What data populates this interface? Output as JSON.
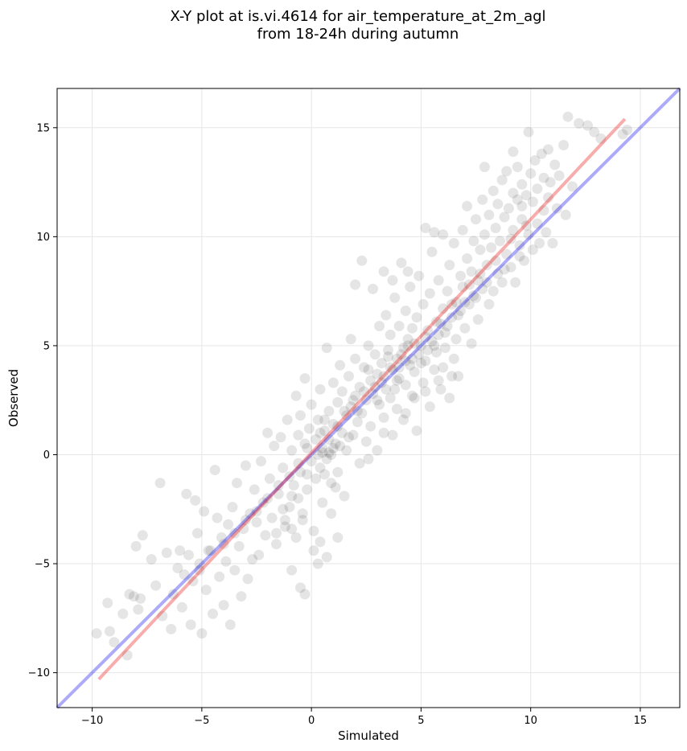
{
  "chart_data": {
    "type": "scatter",
    "title_lines": [
      "X-Y plot at is.vi.4614 for air_temperature_at_2m_agl",
      "from 18-24h during autumn"
    ],
    "xlabel": "Simulated",
    "ylabel": "Observed",
    "xlim": [
      -11.6,
      16.8
    ],
    "ylim": [
      -11.6,
      16.8
    ],
    "xticks": [
      -10,
      -5,
      0,
      5,
      10,
      15
    ],
    "yticks": [
      -10,
      -5,
      0,
      5,
      10,
      15
    ],
    "xtick_labels": [
      "−10",
      "−5",
      "0",
      "5",
      "10",
      "15"
    ],
    "ytick_labels": [
      "−10",
      "−5",
      "0",
      "5",
      "10",
      "15"
    ],
    "grid": true,
    "colors": {
      "points": "#000000",
      "one_to_one_line": "#0000ee",
      "fit_line": "#ee1111",
      "grid": "#e6e6e6"
    },
    "one_to_one_line": {
      "x": [
        -11.6,
        16.8
      ],
      "y": [
        -11.6,
        16.8
      ]
    },
    "fit_line": {
      "x": [
        -9.7,
        14.3
      ],
      "y": [
        -10.3,
        15.4
      ]
    },
    "points": [
      [
        -9.8,
        -8.2
      ],
      [
        -9.3,
        -6.8
      ],
      [
        -9.2,
        -8.1
      ],
      [
        -9.0,
        -8.6
      ],
      [
        -8.6,
        -7.3
      ],
      [
        -8.4,
        -9.2
      ],
      [
        -8.3,
        -6.4
      ],
      [
        -8.1,
        -6.5
      ],
      [
        -8.0,
        -4.2
      ],
      [
        -7.9,
        -7.1
      ],
      [
        -7.8,
        -6.6
      ],
      [
        -7.7,
        -3.7
      ],
      [
        -7.3,
        -4.8
      ],
      [
        -7.1,
        -6.0
      ],
      [
        -6.9,
        -1.3
      ],
      [
        -6.8,
        -7.4
      ],
      [
        -6.6,
        -4.5
      ],
      [
        -6.4,
        -8.0
      ],
      [
        -6.3,
        -6.4
      ],
      [
        -6.1,
        -5.2
      ],
      [
        -6.0,
        -4.4
      ],
      [
        -5.9,
        -7.0
      ],
      [
        -5.7,
        -1.8
      ],
      [
        -5.6,
        -4.6
      ],
      [
        -5.5,
        -7.8
      ],
      [
        -5.4,
        -5.8
      ],
      [
        -5.3,
        -2.1
      ],
      [
        -5.2,
        -3.6
      ],
      [
        -5.1,
        -5.0
      ],
      [
        -5.0,
        -8.2
      ],
      [
        -4.9,
        -2.6
      ],
      [
        -4.8,
        -6.2
      ],
      [
        -4.7,
        -4.4
      ],
      [
        -4.5,
        -7.3
      ],
      [
        -4.4,
        -0.7
      ],
      [
        -4.3,
        -2.9
      ],
      [
        -4.2,
        -5.6
      ],
      [
        -4.1,
        -3.8
      ],
      [
        -4.0,
        -6.9
      ],
      [
        -3.9,
        -4.9
      ],
      [
        -3.8,
        -3.2
      ],
      [
        -3.7,
        -7.8
      ],
      [
        -3.6,
        -2.4
      ],
      [
        -3.5,
        -5.3
      ],
      [
        -3.4,
        -1.3
      ],
      [
        -3.3,
        -4.2
      ],
      [
        -3.2,
        -6.5
      ],
      [
        -3.1,
        -3.4
      ],
      [
        -3.0,
        -0.5
      ],
      [
        -2.9,
        -5.7
      ],
      [
        -2.8,
        -2.7
      ],
      [
        -2.7,
        -4.8
      ],
      [
        -2.6,
        -1.6
      ],
      [
        -2.5,
        -3.1
      ],
      [
        -2.4,
        -4.6
      ],
      [
        -2.3,
        -0.3
      ],
      [
        -2.2,
        -2.2
      ],
      [
        -2.1,
        -3.7
      ],
      [
        -2.0,
        1.0
      ],
      [
        -1.9,
        -1.1
      ],
      [
        -1.8,
        -2.9
      ],
      [
        -1.7,
        0.4
      ],
      [
        -1.6,
        -4.1
      ],
      [
        -1.5,
        -1.8
      ],
      [
        -1.4,
        0.8
      ],
      [
        -1.3,
        -0.6
      ],
      [
        -1.2,
        -3.3
      ],
      [
        -1.1,
        1.6
      ],
      [
        -1.0,
        -2.4
      ],
      [
        -0.9,
        0.2
      ],
      [
        -0.8,
        -1.4
      ],
      [
        -0.7,
        2.7
      ],
      [
        -0.7,
        -3.8
      ],
      [
        -0.6,
        0.9
      ],
      [
        -0.5,
        -0.8
      ],
      [
        -0.5,
        1.8
      ],
      [
        -0.4,
        -2.7
      ],
      [
        -0.3,
        0.5
      ],
      [
        -0.3,
        3.5
      ],
      [
        -0.2,
        -1.6
      ],
      [
        -0.1,
        1.2
      ],
      [
        0.0,
        -0.3
      ],
      [
        0.0,
        2.3
      ],
      [
        0.1,
        -3.5
      ],
      [
        0.2,
        0.7
      ],
      [
        0.2,
        -1.1
      ],
      [
        0.3,
        1.6
      ],
      [
        0.4,
        -0.6
      ],
      [
        0.4,
        3.0
      ],
      [
        0.5,
        0.3
      ],
      [
        0.5,
        -2.2
      ],
      [
        0.6,
        1.1
      ],
      [
        0.7,
        -0.2
      ],
      [
        0.7,
        4.9
      ],
      [
        0.8,
        2.0
      ],
      [
        0.8,
        0.1
      ],
      [
        0.9,
        -1.3
      ],
      [
        1.0,
        1.4
      ],
      [
        1.0,
        3.3
      ],
      [
        1.1,
        0.5
      ],
      [
        1.2,
        2.4
      ],
      [
        1.2,
        -0.8
      ],
      [
        1.3,
        4.1
      ],
      [
        1.4,
        1.0
      ],
      [
        1.4,
        2.9
      ],
      [
        1.5,
        -1.9
      ],
      [
        1.6,
        1.8
      ],
      [
        1.6,
        0.2
      ],
      [
        1.7,
        3.6
      ],
      [
        1.8,
        2.2
      ],
      [
        1.8,
        5.3
      ],
      [
        1.9,
        0.9
      ],
      [
        2.0,
        2.7
      ],
      [
        2.0,
        4.4
      ],
      [
        2.1,
        1.5
      ],
      [
        2.2,
        -0.4
      ],
      [
        2.2,
        3.1
      ],
      [
        2.3,
        8.9
      ],
      [
        2.3,
        1.9
      ],
      [
        2.4,
        4.0
      ],
      [
        2.5,
        2.5
      ],
      [
        2.5,
        0.6
      ],
      [
        2.6,
        5.0
      ],
      [
        2.7,
        3.4
      ],
      [
        2.7,
        1.3
      ],
      [
        2.8,
        7.6
      ],
      [
        2.8,
        2.8
      ],
      [
        2.9,
        4.6
      ],
      [
        3.0,
        0.2
      ],
      [
        3.0,
        3.7
      ],
      [
        3.1,
        5.9
      ],
      [
        3.1,
        2.3
      ],
      [
        3.2,
        4.2
      ],
      [
        3.3,
        8.4
      ],
      [
        3.3,
        1.7
      ],
      [
        3.4,
        3.0
      ],
      [
        3.4,
        6.4
      ],
      [
        3.5,
        4.8
      ],
      [
        3.6,
        2.6
      ],
      [
        3.6,
        5.5
      ],
      [
        3.7,
        0.9
      ],
      [
        3.7,
        3.9
      ],
      [
        3.8,
        7.2
      ],
      [
        3.9,
        4.4
      ],
      [
        3.9,
        2.1
      ],
      [
        4.0,
        5.9
      ],
      [
        4.0,
        3.5
      ],
      [
        4.1,
        8.8
      ],
      [
        4.2,
        4.9
      ],
      [
        4.2,
        1.6
      ],
      [
        4.3,
        6.6
      ],
      [
        4.3,
        3.2
      ],
      [
        4.4,
        5.3
      ],
      [
        4.5,
        4.1
      ],
      [
        4.5,
        7.7
      ],
      [
        4.6,
        2.7
      ],
      [
        4.6,
        5.8
      ],
      [
        4.7,
        3.8
      ],
      [
        4.8,
        6.3
      ],
      [
        4.8,
        1.1
      ],
      [
        4.9,
        4.6
      ],
      [
        4.9,
        8.2
      ],
      [
        5.0,
        5.0
      ],
      [
        5.1,
        3.3
      ],
      [
        5.1,
        6.9
      ],
      [
        5.2,
        10.4
      ],
      [
        5.2,
        4.3
      ],
      [
        5.3,
        5.7
      ],
      [
        5.4,
        2.2
      ],
      [
        5.4,
        7.4
      ],
      [
        5.5,
        5.2
      ],
      [
        5.5,
        9.3
      ],
      [
        5.6,
        3.9
      ],
      [
        5.7,
        6.1
      ],
      [
        5.7,
        4.7
      ],
      [
        5.8,
        8.0
      ],
      [
        5.8,
        5.5
      ],
      [
        5.9,
        3.0
      ],
      [
        6.0,
        6.7
      ],
      [
        6.0,
        10.1
      ],
      [
        6.1,
        4.9
      ],
      [
        6.2,
        7.5
      ],
      [
        6.2,
        5.9
      ],
      [
        6.3,
        2.6
      ],
      [
        6.3,
        8.7
      ],
      [
        6.4,
        6.3
      ],
      [
        6.5,
        4.4
      ],
      [
        6.5,
        9.7
      ],
      [
        6.6,
        7.0
      ],
      [
        6.6,
        5.3
      ],
      [
        6.7,
        3.6
      ],
      [
        6.8,
        8.2
      ],
      [
        6.8,
        6.6
      ],
      [
        6.9,
        10.3
      ],
      [
        6.9,
        7.7
      ],
      [
        7.0,
        5.8
      ],
      [
        7.1,
        9.0
      ],
      [
        7.1,
        11.4
      ],
      [
        7.2,
        6.9
      ],
      [
        7.3,
        8.4
      ],
      [
        7.3,
        5.1
      ],
      [
        7.4,
        9.8
      ],
      [
        7.4,
        7.3
      ],
      [
        7.5,
        10.8
      ],
      [
        7.6,
        8.0
      ],
      [
        7.6,
        6.2
      ],
      [
        7.7,
        9.4
      ],
      [
        7.8,
        11.7
      ],
      [
        7.8,
        7.6
      ],
      [
        7.9,
        10.1
      ],
      [
        7.9,
        13.2
      ],
      [
        8.0,
        8.7
      ],
      [
        8.1,
        6.9
      ],
      [
        8.1,
        11.0
      ],
      [
        8.2,
        9.5
      ],
      [
        8.3,
        7.5
      ],
      [
        8.3,
        12.1
      ],
      [
        8.4,
        10.4
      ],
      [
        8.5,
        8.3
      ],
      [
        8.5,
        11.5
      ],
      [
        8.6,
        9.8
      ],
      [
        8.7,
        12.6
      ],
      [
        8.7,
        7.9
      ],
      [
        8.8,
        10.9
      ],
      [
        8.9,
        9.2
      ],
      [
        8.9,
        13.0
      ],
      [
        9.0,
        11.3
      ],
      [
        9.1,
        8.6
      ],
      [
        9.2,
        12.0
      ],
      [
        9.2,
        10.3
      ],
      [
        9.3,
        7.9
      ],
      [
        9.4,
        11.7
      ],
      [
        9.4,
        13.2
      ],
      [
        9.5,
        9.6
      ],
      [
        9.6,
        12.4
      ],
      [
        9.6,
        10.8
      ],
      [
        9.7,
        8.9
      ],
      [
        9.8,
        11.9
      ],
      [
        9.9,
        14.8
      ],
      [
        9.9,
        10.1
      ],
      [
        10.0,
        12.9
      ],
      [
        10.1,
        9.4
      ],
      [
        10.1,
        11.6
      ],
      [
        10.2,
        13.5
      ],
      [
        10.3,
        10.6
      ],
      [
        10.3,
        12.2
      ],
      [
        10.4,
        9.7
      ],
      [
        10.5,
        13.8
      ],
      [
        10.6,
        11.2
      ],
      [
        10.6,
        12.7
      ],
      [
        10.7,
        10.2
      ],
      [
        10.8,
        14.0
      ],
      [
        10.8,
        11.8
      ],
      [
        10.9,
        12.5
      ],
      [
        11.0,
        9.7
      ],
      [
        11.1,
        13.3
      ],
      [
        11.2,
        11.3
      ],
      [
        11.3,
        12.8
      ],
      [
        11.5,
        14.2
      ],
      [
        11.6,
        11.0
      ],
      [
        11.7,
        15.5
      ],
      [
        11.9,
        12.3
      ],
      [
        12.2,
        15.2
      ],
      [
        12.6,
        15.1
      ],
      [
        12.9,
        14.8
      ],
      [
        13.2,
        14.5
      ],
      [
        14.2,
        14.7
      ],
      [
        14.4,
        14.9
      ],
      [
        0.6,
        -0.9
      ],
      [
        0.3,
        0.0
      ],
      [
        1.1,
        -1.5
      ],
      [
        1.5,
        2.0
      ],
      [
        2.6,
        3.9
      ],
      [
        3.2,
        3.3
      ],
      [
        3.5,
        4.5
      ],
      [
        3.8,
        3.0
      ],
      [
        4.0,
        4.0
      ],
      [
        4.4,
        5.0
      ],
      [
        4.6,
        4.4
      ],
      [
        4.7,
        5.1
      ],
      [
        5.0,
        4.2
      ],
      [
        5.2,
        5.4
      ],
      [
        5.3,
        4.8
      ],
      [
        5.6,
        5.0
      ],
      [
        5.9,
        6.0
      ],
      [
        6.1,
        5.6
      ],
      [
        6.4,
        6.9
      ],
      [
        6.7,
        6.4
      ],
      [
        7.0,
        7.0
      ],
      [
        7.2,
        7.8
      ],
      [
        7.5,
        7.2
      ],
      [
        7.7,
        8.3
      ],
      [
        8.0,
        7.9
      ],
      [
        8.4,
        8.9
      ],
      [
        8.8,
        8.5
      ],
      [
        9.1,
        9.9
      ],
      [
        9.5,
        9.1
      ],
      [
        9.8,
        10.5
      ],
      [
        1.9,
        2.5
      ],
      [
        2.1,
        2.0
      ],
      [
        2.4,
        2.9
      ],
      [
        2.9,
        3.1
      ],
      [
        3.0,
        2.5
      ],
      [
        3.3,
        3.6
      ],
      [
        3.6,
        4.0
      ],
      [
        3.9,
        3.4
      ],
      [
        4.1,
        4.6
      ],
      [
        4.3,
        4.3
      ],
      [
        -0.2,
        0.3
      ],
      [
        -0.6,
        -0.4
      ],
      [
        -1.0,
        -1.0
      ],
      [
        -1.5,
        -1.4
      ],
      [
        -2.0,
        -2.0
      ],
      [
        -2.5,
        -2.6
      ],
      [
        -3.0,
        -3.0
      ],
      [
        -3.5,
        -3.6
      ],
      [
        -4.0,
        -4.1
      ],
      [
        -4.6,
        -4.4
      ],
      [
        -5.1,
        -5.3
      ],
      [
        -5.8,
        -5.5
      ],
      [
        0.9,
        0.0
      ],
      [
        1.3,
        0.4
      ],
      [
        1.7,
        0.8
      ],
      [
        1.0,
        0.3
      ],
      [
        0.5,
        0.1
      ],
      [
        0.8,
        0.7
      ],
      [
        1.2,
        1.3
      ],
      [
        0.4,
        1.0
      ],
      [
        0.6,
        1.6
      ],
      [
        -0.2,
        -0.9
      ],
      [
        -0.9,
        -1.9
      ],
      [
        -1.3,
        -2.5
      ],
      [
        -0.6,
        -2.0
      ],
      [
        -0.4,
        -3.0
      ],
      [
        -1.2,
        -3.0
      ],
      [
        -0.9,
        -3.4
      ],
      [
        -1.6,
        -3.6
      ],
      [
        0.7,
        -4.7
      ],
      [
        0.4,
        -4.0
      ],
      [
        0.3,
        -5.0
      ],
      [
        -0.9,
        -5.3
      ],
      [
        -0.5,
        -6.1
      ],
      [
        -0.3,
        -6.4
      ],
      [
        0.1,
        -4.4
      ],
      [
        1.2,
        -3.8
      ],
      [
        0.9,
        -2.7
      ],
      [
        4.4,
        8.4
      ],
      [
        3.7,
        8.0
      ],
      [
        2.0,
        7.8
      ],
      [
        5.6,
        10.2
      ],
      [
        9.2,
        13.9
      ],
      [
        9.6,
        11.4
      ],
      [
        6.4,
        3.6
      ],
      [
        6.0,
        4.0
      ],
      [
        5.8,
        3.4
      ],
      [
        4.3,
        1.9
      ],
      [
        4.7,
        2.6
      ],
      [
        5.2,
        2.9
      ],
      [
        3.3,
        1.0
      ],
      [
        2.6,
        -0.2
      ]
    ]
  }
}
